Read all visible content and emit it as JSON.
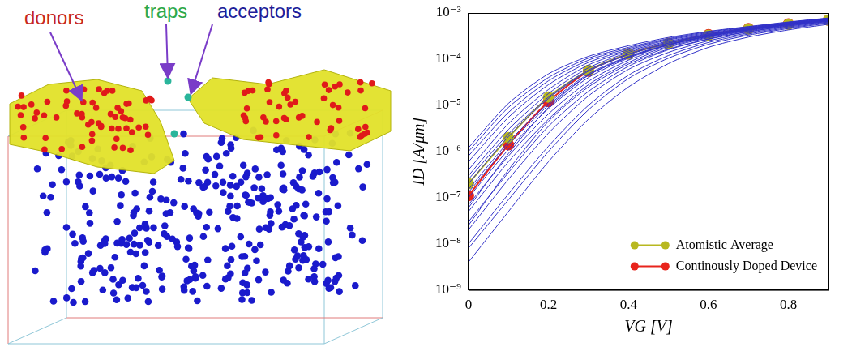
{
  "diagram": {
    "labels": [
      {
        "text": "donors",
        "color": "#c8281e"
      },
      {
        "text": "traps",
        "color": "#2aa84a"
      },
      {
        "text": "acceptors",
        "color": "#1e1e9a"
      }
    ]
  },
  "chart_data": {
    "type": "line",
    "x_label": "VG [V]",
    "y_label": "ID [A/μm]",
    "x": [
      0,
      0.1,
      0.2,
      0.3,
      0.4,
      0.5,
      0.6,
      0.7,
      0.8,
      0.9
    ],
    "xlim": [
      0,
      0.9
    ],
    "xticks": [
      0,
      0.2,
      0.4,
      0.6,
      0.8
    ],
    "ylim": [
      1e-09,
      0.001
    ],
    "yticks": [
      {
        "value": 1e-09,
        "label": "10⁻⁹"
      },
      {
        "value": 1e-08,
        "label": "10⁻⁸"
      },
      {
        "value": 1e-07,
        "label": "10⁻⁷"
      },
      {
        "value": 1e-06,
        "label": "10⁻⁶"
      },
      {
        "value": 1e-05,
        "label": "10⁻⁵"
      },
      {
        "value": 0.0001,
        "label": "10⁻⁴"
      },
      {
        "value": 0.001,
        "label": "10⁻³"
      }
    ],
    "log": "y",
    "grid": false,
    "legend": "lower right",
    "series": [
      {
        "color": "#3232c8",
        "marker": "none",
        "line_style": "solid",
        "values": [
          4e-09,
          5e-08,
          6e-07,
          5e-06,
          2.5e-05,
          8e-05,
          0.00018,
          0.0003,
          0.00043,
          0.00057
        ]
      },
      {
        "color": "#3232c8",
        "marker": "none",
        "line_style": "solid",
        "values": [
          1e-08,
          1.2e-07,
          1.3e-06,
          1e-05,
          4.5e-05,
          0.00012,
          0.00023,
          0.00035,
          0.00048,
          0.00062
        ]
      },
      {
        "color": "#3232c8",
        "marker": "none",
        "line_style": "solid",
        "values": [
          2e-08,
          2.5e-07,
          2.5e-06,
          1.6e-05,
          6e-05,
          0.00014,
          0.00025,
          0.00037,
          0.0005,
          0.00064
        ]
      },
      {
        "color": "#3232c8",
        "marker": "none",
        "line_style": "solid",
        "values": [
          3e-08,
          3.5e-07,
          3.5e-06,
          2e-05,
          7e-05,
          0.00016,
          0.00027,
          0.00039,
          0.00052,
          0.00066
        ]
      },
      {
        "color": "#3232c8",
        "marker": "none",
        "line_style": "solid",
        "values": [
          5e-08,
          6e-07,
          5e-06,
          2.8e-05,
          8.5e-05,
          0.00018,
          0.00029,
          0.00041,
          0.00054,
          0.00068
        ]
      },
      {
        "color": "#3232c8",
        "marker": "none",
        "line_style": "solid",
        "values": [
          7e-08,
          8e-07,
          6.5e-06,
          3.3e-05,
          9.5e-05,
          0.00019,
          0.0003,
          0.00042,
          0.00055,
          0.00069
        ]
      },
      {
        "color": "#3232c8",
        "marker": "none",
        "line_style": "solid",
        "values": [
          1e-07,
          1.1e-06,
          8.5e-06,
          4e-05,
          0.000105,
          0.0002,
          0.00031,
          0.00043,
          0.00056,
          0.0007
        ]
      },
      {
        "color": "#3232c8",
        "marker": "none",
        "line_style": "solid",
        "values": [
          1.5e-07,
          1.6e-06,
          1.1e-05,
          4.8e-05,
          0.000115,
          0.00021,
          0.00032,
          0.00044,
          0.00057,
          0.00071
        ]
      },
      {
        "color": "#3232c8",
        "marker": "none",
        "line_style": "solid",
        "values": [
          2e-07,
          2.1e-06,
          1.4e-05,
          5.5e-05,
          0.000125,
          0.00022,
          0.00033,
          0.00045,
          0.00058,
          0.00072
        ]
      },
      {
        "color": "#3232c8",
        "marker": "none",
        "line_style": "solid",
        "values": [
          3e-07,
          3e-06,
          1.8e-05,
          6.5e-05,
          0.00014,
          0.000235,
          0.00034,
          0.00046,
          0.00059,
          0.00073
        ]
      },
      {
        "color": "#3232c8",
        "marker": "none",
        "line_style": "solid",
        "values": [
          4e-07,
          4e-06,
          2.2e-05,
          7.5e-05,
          0.00015,
          0.000245,
          0.00035,
          0.00047,
          0.0006,
          0.00074
        ]
      },
      {
        "color": "#3232c8",
        "marker": "none",
        "line_style": "solid",
        "values": [
          6e-07,
          5.5e-06,
          2.8e-05,
          8.5e-05,
          0.00016,
          0.00026,
          0.00036,
          0.00048,
          0.00061,
          0.00075
        ]
      },
      {
        "color": "#3232c8",
        "marker": "none",
        "line_style": "solid",
        "values": [
          8e-07,
          7e-06,
          3.4e-05,
          9.5e-05,
          0.00017,
          0.00027,
          0.000375,
          0.00049,
          0.00062,
          0.00076
        ]
      },
      {
        "color": "#3232c8",
        "marker": "none",
        "line_style": "solid",
        "values": [
          1e-06,
          9e-06,
          4e-05,
          0.000105,
          0.00018,
          0.00028,
          0.00039,
          0.0005,
          0.00063,
          0.00077
        ]
      },
      {
        "color": "#3232c8",
        "marker": "none",
        "line_style": "solid",
        "values": [
          1.2e-06,
          1.1e-05,
          4.8e-05,
          0.000115,
          0.000195,
          0.000295,
          0.0004,
          0.00051,
          0.00064,
          0.00078
        ]
      },
      {
        "color": "#3232c8",
        "marker": "none",
        "line_style": "solid",
        "values": [
          6e-08,
          9e-07,
          9e-06,
          4.5e-05,
          0.00011,
          0.000205,
          0.000315,
          0.000435,
          0.000565,
          0.0007
        ]
      },
      {
        "color": "#3232c8",
        "marker": "none",
        "line_style": "solid",
        "values": [
          2.5e-08,
          4e-07,
          4.5e-06,
          2.5e-05,
          7.8e-05,
          0.000165,
          0.000275,
          0.000395,
          0.000525,
          0.000665
        ]
      },
      {
        "color": "#3232c8",
        "marker": "none",
        "line_style": "solid",
        "values": [
          1.3e-07,
          1.4e-06,
          1e-05,
          4.5e-05,
          0.00011,
          0.000205,
          0.000315,
          0.000435,
          0.000565,
          0.0007
        ]
      },
      {
        "color": "#3232c8",
        "marker": "none",
        "line_style": "solid",
        "values": [
          2.5e-07,
          2.4e-06,
          1.5e-05,
          5.8e-05,
          0.00013,
          0.000225,
          0.000335,
          0.000455,
          0.000585,
          0.000725
        ]
      },
      {
        "color": "#3232c8",
        "marker": "none",
        "line_style": "solid",
        "values": [
          8e-09,
          9e-08,
          1e-06,
          8e-06,
          3.8e-05,
          0.000105,
          0.00021,
          0.00033,
          0.00046,
          0.0006
        ]
      },
      {
        "name": "Atomistic Average",
        "color": "#b8b820",
        "marker": "circle",
        "line_style": "solid",
        "values": [
          2e-07,
          2e-06,
          1.5e-05,
          5.7e-05,
          0.00013,
          0.00022,
          0.00033,
          0.00045,
          0.00057,
          0.0007
        ]
      },
      {
        "name": "Continously Doped Device",
        "color": "#e8241c",
        "marker": "circle",
        "line_style": "solid",
        "values": [
          1.1e-07,
          1.4e-06,
          1.2e-05,
          5.5e-05,
          0.00013,
          0.00022,
          0.00034,
          0.00046,
          0.00058,
          0.0007
        ]
      }
    ]
  }
}
